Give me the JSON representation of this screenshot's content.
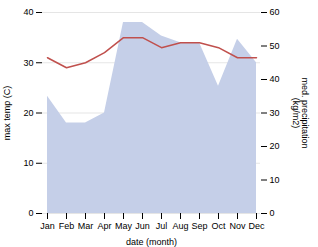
{
  "chart_data": {
    "type": "line",
    "xlabel": "date (month)",
    "ylabel": "max temp (C)",
    "y2label": "med. precipitation\n(kg/m2)",
    "categories": [
      "Jan",
      "Feb",
      "Mar",
      "Apr",
      "May",
      "Jun",
      "Jul",
      "Aug",
      "Sep",
      "Oct",
      "Nov",
      "Dec"
    ],
    "series": [
      {
        "type": "area",
        "axis": "y2",
        "color": "#c5cfe8",
        "values": [
          35,
          27,
          27,
          30,
          57,
          57,
          53,
          51,
          51,
          38,
          52,
          45
        ]
      },
      {
        "type": "line",
        "color": "#c0504d",
        "values": [
          31,
          29,
          30,
          32,
          35,
          35,
          33,
          34,
          34,
          33,
          31,
          31
        ]
      }
    ],
    "ylim": [
      0,
      40
    ],
    "yticks": [
      0,
      10,
      20,
      30,
      40
    ],
    "y2lim": [
      0,
      60
    ],
    "y2ticks": [
      0,
      10,
      20,
      30,
      40,
      50,
      60
    ],
    "grid": true
  }
}
